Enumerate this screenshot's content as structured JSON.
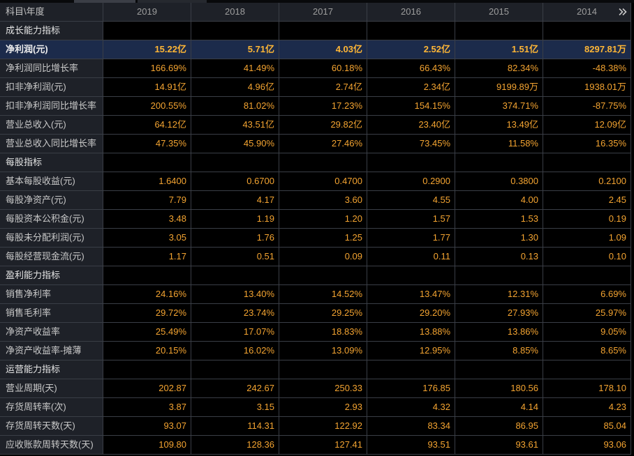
{
  "table": {
    "corner_label": "科目\\年度",
    "years": [
      "2019",
      "2018",
      "2017",
      "2016",
      "2015",
      "2014"
    ],
    "more_icon": "double-chevron-right-icon",
    "rows": [
      {
        "label": "成长能力指标",
        "section": true
      },
      {
        "label": "净利润(元)",
        "highlight": true,
        "values": [
          "15.22亿",
          "5.71亿",
          "4.03亿",
          "2.52亿",
          "1.51亿",
          "8297.81万"
        ]
      },
      {
        "label": "净利润同比增长率",
        "values": [
          "166.69%",
          "41.49%",
          "60.18%",
          "66.43%",
          "82.34%",
          "-48.38%"
        ]
      },
      {
        "label": "扣非净利润(元)",
        "values": [
          "14.91亿",
          "4.96亿",
          "2.74亿",
          "2.34亿",
          "9199.89万",
          "1938.01万"
        ]
      },
      {
        "label": "扣非净利润同比增长率",
        "values": [
          "200.55%",
          "81.02%",
          "17.23%",
          "154.15%",
          "374.71%",
          "-87.75%"
        ]
      },
      {
        "label": "营业总收入(元)",
        "values": [
          "64.12亿",
          "43.51亿",
          "29.82亿",
          "23.40亿",
          "13.49亿",
          "12.09亿"
        ]
      },
      {
        "label": "营业总收入同比增长率",
        "values": [
          "47.35%",
          "45.90%",
          "27.46%",
          "73.45%",
          "11.58%",
          "16.35%"
        ]
      },
      {
        "label": "每股指标",
        "section": true
      },
      {
        "label": "基本每股收益(元)",
        "values": [
          "1.6400",
          "0.6700",
          "0.4700",
          "0.2900",
          "0.3800",
          "0.2100"
        ]
      },
      {
        "label": "每股净资产(元)",
        "values": [
          "7.79",
          "4.17",
          "3.60",
          "4.55",
          "4.00",
          "2.45"
        ]
      },
      {
        "label": "每股资本公积金(元)",
        "values": [
          "3.48",
          "1.19",
          "1.20",
          "1.57",
          "1.53",
          "0.19"
        ]
      },
      {
        "label": "每股未分配利润(元)",
        "values": [
          "3.05",
          "1.76",
          "1.25",
          "1.77",
          "1.30",
          "1.09"
        ]
      },
      {
        "label": "每股经营现金流(元)",
        "values": [
          "1.17",
          "0.51",
          "0.09",
          "0.11",
          "0.13",
          "0.10"
        ]
      },
      {
        "label": "盈利能力指标",
        "section": true
      },
      {
        "label": "销售净利率",
        "values": [
          "24.16%",
          "13.40%",
          "14.52%",
          "13.47%",
          "12.31%",
          "6.69%"
        ]
      },
      {
        "label": "销售毛利率",
        "values": [
          "29.72%",
          "23.74%",
          "29.25%",
          "29.20%",
          "27.93%",
          "25.97%"
        ]
      },
      {
        "label": "净资产收益率",
        "values": [
          "25.49%",
          "17.07%",
          "18.83%",
          "13.88%",
          "13.86%",
          "9.05%"
        ]
      },
      {
        "label": "净资产收益率-摊薄",
        "values": [
          "20.15%",
          "16.02%",
          "13.09%",
          "12.95%",
          "8.85%",
          "8.65%"
        ]
      },
      {
        "label": "运营能力指标",
        "section": true
      },
      {
        "label": "营业周期(天)",
        "values": [
          "202.87",
          "242.67",
          "250.33",
          "176.85",
          "180.56",
          "178.10"
        ]
      },
      {
        "label": "存货周转率(次)",
        "values": [
          "3.87",
          "3.15",
          "2.93",
          "4.32",
          "4.14",
          "4.23"
        ]
      },
      {
        "label": "存货周转天数(天)",
        "values": [
          "93.07",
          "114.31",
          "122.92",
          "83.34",
          "86.95",
          "85.04"
        ]
      },
      {
        "label": "应收账款周转天数(天)",
        "values": [
          "109.80",
          "128.36",
          "127.41",
          "93.51",
          "93.61",
          "93.06"
        ]
      }
    ]
  },
  "colors": {
    "background": "#000000",
    "label_cell": "#1e2128",
    "grid": "#3a3e46",
    "label_text": "#c9c9c9",
    "section_text": "#e6e6e6",
    "header_text": "#9d9d9d",
    "value_text": "#f4a431",
    "highlight_row": "#1c2b4b",
    "highlight_value": "#ffb636"
  }
}
